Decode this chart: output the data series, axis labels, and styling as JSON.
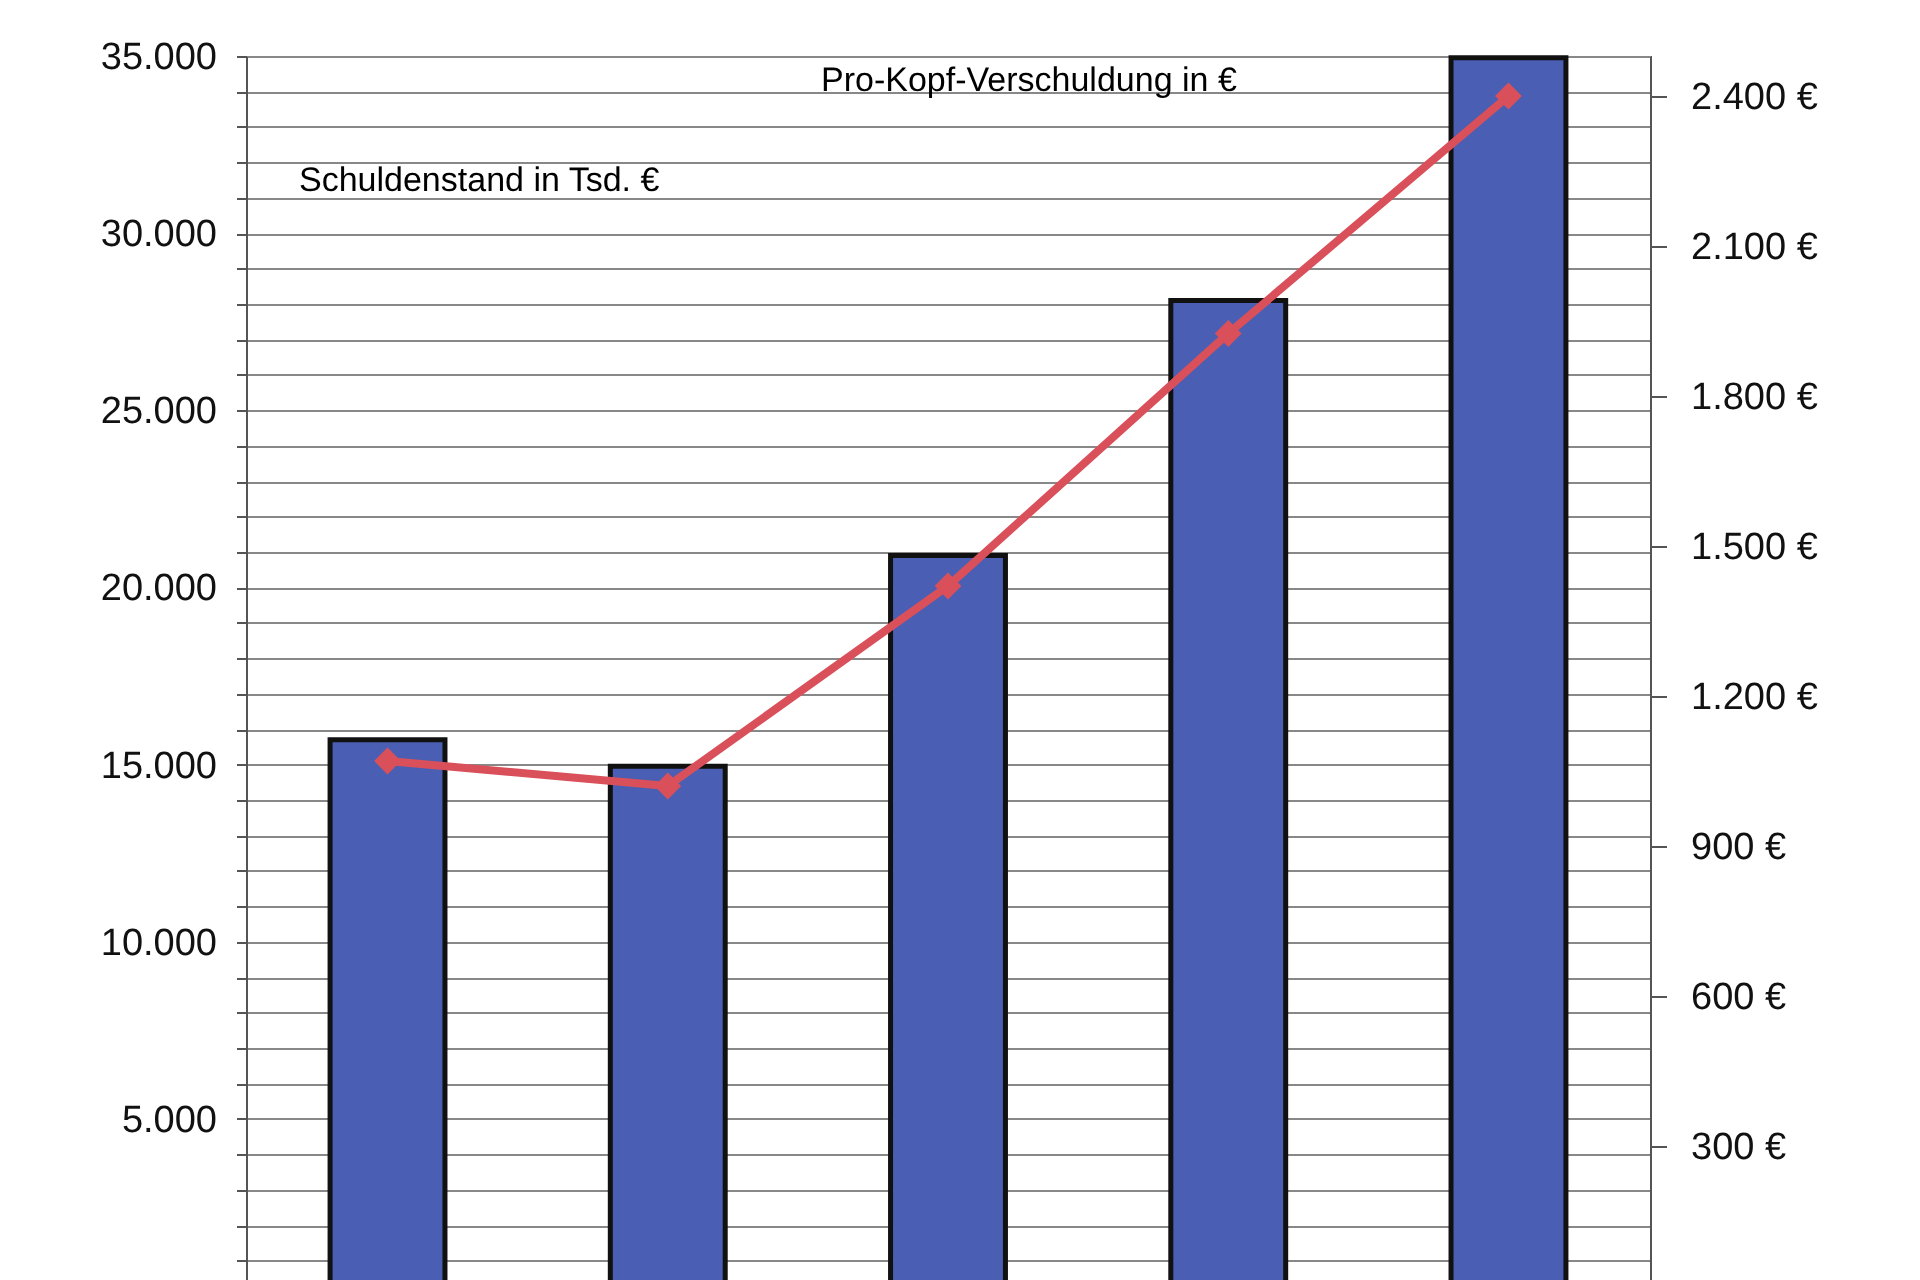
{
  "chart_data": {
    "type": "bar",
    "categories": [
      null,
      null,
      null,
      null,
      null
    ],
    "ylabel": "Schuldenstand in Tsd. €",
    "y2label": "Pro-Kopf-Verschuldung in €",
    "series": [
      {
        "color": "#4a5fb3",
        "values": [
          15700,
          14950,
          20900,
          28100,
          34950
        ]
      },
      {
        "type": "line",
        "axis": "y2",
        "color": "#d9505a",
        "marker": "diamond",
        "values": [
          1070,
          1020,
          1420,
          1925,
          2400
        ]
      }
    ],
    "ylim": [
      0,
      35000
    ],
    "yticks": [
      {
        "value": 1000,
        "label": null
      },
      {
        "value": 2000,
        "label": null
      },
      {
        "value": 3000,
        "label": null
      },
      {
        "value": 4000,
        "label": null
      },
      {
        "value": 5000,
        "label": "5.000"
      },
      {
        "value": 6000,
        "label": null
      },
      {
        "value": 7000,
        "label": null
      },
      {
        "value": 8000,
        "label": null
      },
      {
        "value": 9000,
        "label": null
      },
      {
        "value": 10000,
        "label": "10.000"
      },
      {
        "value": 11000,
        "label": null
      },
      {
        "value": 12000,
        "label": null
      },
      {
        "value": 13000,
        "label": null
      },
      {
        "value": 14000,
        "label": null
      },
      {
        "value": 15000,
        "label": "15.000"
      },
      {
        "value": 16000,
        "label": null
      },
      {
        "value": 17000,
        "label": null
      },
      {
        "value": 18000,
        "label": null
      },
      {
        "value": 19000,
        "label": null
      },
      {
        "value": 20000,
        "label": "20.000"
      },
      {
        "value": 21000,
        "label": null
      },
      {
        "value": 22000,
        "label": null
      },
      {
        "value": 23000,
        "label": null
      },
      {
        "value": 24000,
        "label": null
      },
      {
        "value": 25000,
        "label": "25.000"
      },
      {
        "value": 26000,
        "label": null
      },
      {
        "value": 27000,
        "label": null
      },
      {
        "value": 28000,
        "label": null
      },
      {
        "value": 29000,
        "label": null
      },
      {
        "value": 30000,
        "label": "30.000"
      },
      {
        "value": 31000,
        "label": null
      },
      {
        "value": 32000,
        "label": null
      },
      {
        "value": 33000,
        "label": null
      },
      {
        "value": 34000,
        "label": null
      },
      {
        "value": 35000,
        "label": "35.000"
      }
    ],
    "y2lim": [
      0,
      2480
    ],
    "y2ticks": [
      {
        "value": 300,
        "label": "300 €"
      },
      {
        "value": 600,
        "label": "600 €"
      },
      {
        "value": 900,
        "label": "900 €"
      },
      {
        "value": 1200,
        "label": "1.200 €"
      },
      {
        "value": 1500,
        "label": "1.500 €"
      },
      {
        "value": 1800,
        "label": "1.800 €"
      },
      {
        "value": 2100,
        "label": "2.100 €"
      },
      {
        "value": 2400,
        "label": "2.400 €"
      }
    ],
    "grid": "y"
  }
}
